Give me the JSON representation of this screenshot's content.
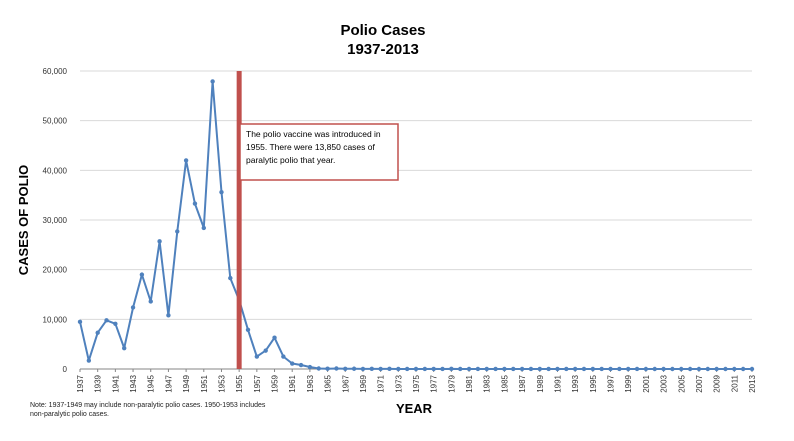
{
  "chart_data": {
    "type": "line",
    "title": "Polio Cases",
    "subtitle": "1937-2013",
    "xlabel": "YEAR",
    "ylabel": "CASES OF POLIO",
    "ylim": [
      0,
      60000
    ],
    "yticks": [
      "0",
      "10,000",
      "20,000",
      "30,000",
      "40,000",
      "50,000",
      "60,000"
    ],
    "xlim": [
      1937,
      2013
    ],
    "xticks": [
      1937,
      1939,
      1941,
      1943,
      1945,
      1947,
      1949,
      1951,
      1953,
      1955,
      1957,
      1959,
      1961,
      1963,
      1965,
      1967,
      1969,
      1971,
      1973,
      1975,
      1977,
      1979,
      1981,
      1983,
      1985,
      1987,
      1989,
      1991,
      1993,
      1995,
      1997,
      1999,
      2001,
      2003,
      2005,
      2007,
      2009,
      2011,
      2013
    ],
    "grid": true,
    "marker_line": {
      "x": 1955,
      "color": "#C0504D"
    },
    "annotation": {
      "lines": [
        "The polio vaccine was introduced in",
        "1955. There were 13,850 cases of",
        "paralytic polio that year."
      ]
    },
    "note": [
      "Note: 1937-1949 may include non-paralytic polio cases. 1950-1953 includes",
      "non-paralytic polio cases."
    ],
    "series": [
      {
        "name": "Polio Cases",
        "color": "#4F81BD",
        "x": [
          1937,
          1938,
          1939,
          1940,
          1941,
          1942,
          1943,
          1944,
          1945,
          1946,
          1947,
          1948,
          1949,
          1950,
          1951,
          1952,
          1953,
          1954,
          1955,
          1956,
          1957,
          1958,
          1959,
          1960,
          1961,
          1962,
          1963,
          1964,
          1965,
          1966,
          1967,
          1968,
          1969,
          1970,
          1971,
          1972,
          1973,
          1974,
          1975,
          1976,
          1977,
          1978,
          1979,
          1980,
          1981,
          1982,
          1983,
          1984,
          1985,
          1986,
          1987,
          1988,
          1989,
          1990,
          1991,
          1992,
          1993,
          1994,
          1995,
          1996,
          1997,
          1998,
          1999,
          2000,
          2001,
          2002,
          2003,
          2004,
          2005,
          2006,
          2007,
          2008,
          2009,
          2010,
          2011,
          2012,
          2013
        ],
        "values": [
          9500,
          1700,
          7300,
          9800,
          9100,
          4200,
          12400,
          19000,
          13600,
          25700,
          10800,
          27700,
          42000,
          33300,
          28400,
          57900,
          35600,
          18300,
          13850,
          7900,
          2500,
          3700,
          6300,
          2500,
          1100,
          800,
          400,
          100,
          60,
          100,
          40,
          50,
          20,
          30,
          20,
          30,
          10,
          10,
          10,
          10,
          20,
          10,
          30,
          10,
          10,
          10,
          10,
          10,
          10,
          10,
          10,
          10,
          10,
          10,
          10,
          10,
          10,
          10,
          10,
          10,
          10,
          10,
          10,
          10,
          0,
          0,
          0,
          0,
          0,
          0,
          0,
          0,
          0,
          0,
          0,
          0,
          0
        ]
      }
    ]
  }
}
